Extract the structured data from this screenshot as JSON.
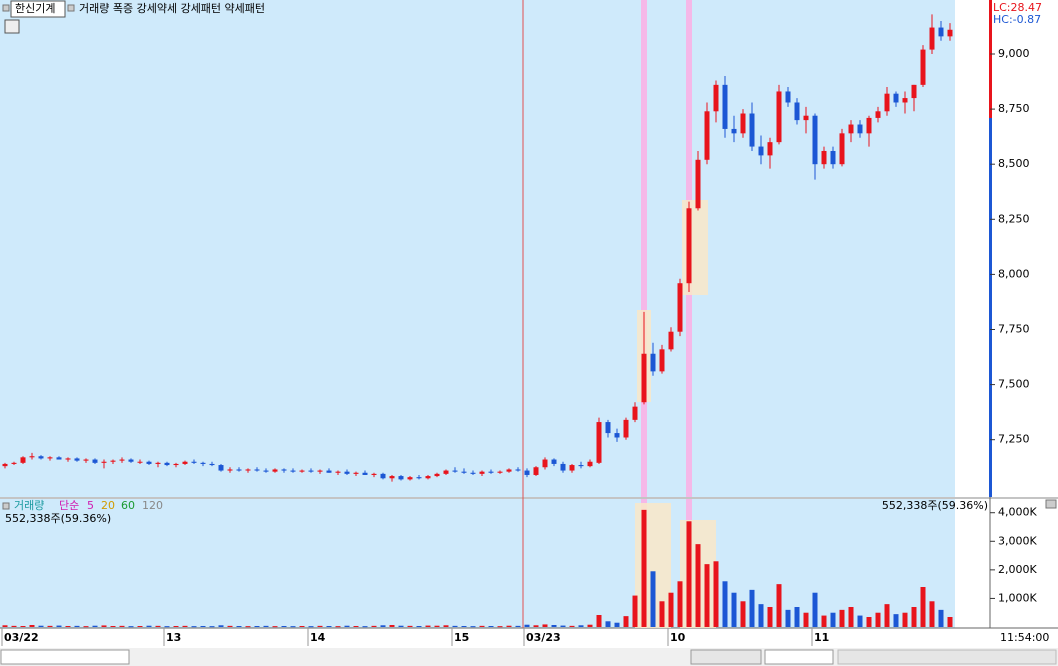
{
  "header": {
    "stock_name": "한신기계",
    "indicators": "거래량 폭증 강세약세 강세패턴 약세패턴",
    "lc": "LC:28.47",
    "hc": "HC:-0.87"
  },
  "chart_data": [
    {
      "type": "candlestick",
      "categories": [
        "03/22",
        null,
        null,
        null,
        null,
        null,
        null,
        null,
        null,
        null,
        null,
        null,
        null,
        null,
        null,
        null,
        null,
        null,
        "13",
        null,
        null,
        null,
        null,
        null,
        null,
        null,
        null,
        null,
        null,
        null,
        null,
        null,
        null,
        null,
        "14",
        null,
        null,
        null,
        null,
        null,
        null,
        null,
        null,
        null,
        null,
        null,
        null,
        null,
        null,
        null,
        "15",
        null,
        null,
        null,
        null,
        null,
        null,
        null,
        "03/23",
        null,
        null,
        null,
        null,
        null,
        null,
        null,
        null,
        null,
        null,
        null,
        null,
        null,
        null,
        null,
        "10",
        null,
        null,
        null,
        null,
        null,
        null,
        null,
        null,
        null,
        null,
        null,
        null,
        null,
        null,
        null,
        "11",
        null,
        null,
        null,
        null,
        null,
        null,
        null,
        null,
        null,
        null,
        null,
        null,
        null,
        null,
        null
      ],
      "candles": [
        [
          7130,
          7145,
          7120,
          7140
        ],
        [
          7140,
          7150,
          7135,
          7145
        ],
        [
          7145,
          7175,
          7140,
          7170
        ],
        [
          7170,
          7190,
          7160,
          7175
        ],
        [
          7175,
          7180,
          7160,
          7165
        ],
        [
          7165,
          7175,
          7155,
          7170
        ],
        [
          7170,
          7175,
          7160,
          7160
        ],
        [
          7160,
          7170,
          7150,
          7165
        ],
        [
          7165,
          7170,
          7150,
          7155
        ],
        [
          7155,
          7165,
          7145,
          7160
        ],
        [
          7160,
          7165,
          7140,
          7145
        ],
        [
          7145,
          7160,
          7120,
          7150
        ],
        [
          7150,
          7160,
          7140,
          7155
        ],
        [
          7155,
          7170,
          7145,
          7160
        ],
        [
          7160,
          7165,
          7145,
          7150
        ],
        [
          7150,
          7160,
          7140,
          7150
        ],
        [
          7150,
          7155,
          7135,
          7140
        ],
        [
          7140,
          7150,
          7125,
          7145
        ],
        [
          7145,
          7150,
          7130,
          7135
        ],
        [
          7135,
          7145,
          7125,
          7140
        ],
        [
          7140,
          7155,
          7135,
          7150
        ],
        [
          7150,
          7160,
          7140,
          7145
        ],
        [
          7145,
          7150,
          7130,
          7140
        ],
        [
          7140,
          7150,
          7130,
          7135
        ],
        [
          7135,
          7140,
          7105,
          7110
        ],
        [
          7110,
          7125,
          7100,
          7115
        ],
        [
          7115,
          7125,
          7105,
          7110
        ],
        [
          7110,
          7120,
          7100,
          7115
        ],
        [
          7115,
          7125,
          7105,
          7110
        ],
        [
          7110,
          7120,
          7100,
          7105
        ],
        [
          7105,
          7120,
          7100,
          7115
        ],
        [
          7115,
          7120,
          7100,
          7110
        ],
        [
          7110,
          7120,
          7100,
          7105
        ],
        [
          7105,
          7115,
          7100,
          7110
        ],
        [
          7110,
          7120,
          7100,
          7105
        ],
        [
          7105,
          7115,
          7095,
          7110
        ],
        [
          7110,
          7120,
          7100,
          7100
        ],
        [
          7100,
          7110,
          7090,
          7105
        ],
        [
          7105,
          7115,
          7090,
          7095
        ],
        [
          7095,
          7105,
          7085,
          7100
        ],
        [
          7100,
          7110,
          7090,
          7090
        ],
        [
          7090,
          7100,
          7080,
          7095
        ],
        [
          7095,
          7100,
          7070,
          7075
        ],
        [
          7075,
          7090,
          7060,
          7085
        ],
        [
          7085,
          7090,
          7065,
          7070
        ],
        [
          7070,
          7085,
          7065,
          7080
        ],
        [
          7080,
          7090,
          7070,
          7075
        ],
        [
          7075,
          7090,
          7070,
          7085
        ],
        [
          7085,
          7100,
          7080,
          7095
        ],
        [
          7095,
          7115,
          7090,
          7110
        ],
        [
          7110,
          7125,
          7100,
          7105
        ],
        [
          7105,
          7120,
          7095,
          7100
        ],
        [
          7100,
          7110,
          7090,
          7095
        ],
        [
          7095,
          7110,
          7085,
          7105
        ],
        [
          7105,
          7115,
          7095,
          7100
        ],
        [
          7100,
          7110,
          7095,
          7105
        ],
        [
          7105,
          7120,
          7100,
          7115
        ],
        [
          7115,
          7125,
          7105,
          7110
        ],
        [
          7110,
          7120,
          7080,
          7090
        ],
        [
          7090,
          7130,
          7085,
          7125
        ],
        [
          7125,
          7170,
          7115,
          7160
        ],
        [
          7160,
          7165,
          7130,
          7140
        ],
        [
          7140,
          7150,
          7100,
          7110
        ],
        [
          7110,
          7140,
          7100,
          7135
        ],
        [
          7135,
          7150,
          7120,
          7130
        ],
        [
          7130,
          7160,
          7125,
          7150
        ],
        [
          7145,
          7350,
          7140,
          7330
        ],
        [
          7330,
          7340,
          7260,
          7280
        ],
        [
          7280,
          7300,
          7240,
          7260
        ],
        [
          7260,
          7350,
          7250,
          7340
        ],
        [
          7340,
          7420,
          7330,
          7400
        ],
        [
          7420,
          7830,
          7410,
          7640
        ],
        [
          7640,
          7690,
          7540,
          7560
        ],
        [
          7560,
          7680,
          7550,
          7660
        ],
        [
          7660,
          7760,
          7650,
          7740
        ],
        [
          7740,
          7980,
          7720,
          7960
        ],
        [
          7960,
          8330,
          7920,
          8300
        ],
        [
          8300,
          8560,
          8290,
          8520
        ],
        [
          8520,
          8780,
          8500,
          8740
        ],
        [
          8740,
          8880,
          8690,
          8860
        ],
        [
          8860,
          8900,
          8620,
          8660
        ],
        [
          8660,
          8720,
          8600,
          8640
        ],
        [
          8640,
          8750,
          8620,
          8730
        ],
        [
          8730,
          8780,
          8560,
          8580
        ],
        [
          8580,
          8630,
          8500,
          8540
        ],
        [
          8540,
          8620,
          8480,
          8600
        ],
        [
          8600,
          8860,
          8590,
          8830
        ],
        [
          8830,
          8850,
          8760,
          8780
        ],
        [
          8780,
          8800,
          8680,
          8700
        ],
        [
          8700,
          8760,
          8640,
          8720
        ],
        [
          8720,
          8730,
          8430,
          8500
        ],
        [
          8500,
          8580,
          8480,
          8560
        ],
        [
          8560,
          8580,
          8480,
          8500
        ],
        [
          8500,
          8660,
          8490,
          8640
        ],
        [
          8640,
          8700,
          8600,
          8680
        ],
        [
          8680,
          8700,
          8620,
          8640
        ],
        [
          8640,
          8720,
          8580,
          8710
        ],
        [
          8710,
          8760,
          8690,
          8740
        ],
        [
          8740,
          8850,
          8720,
          8820
        ],
        [
          8820,
          8830,
          8760,
          8780
        ],
        [
          8780,
          8830,
          8730,
          8800
        ],
        [
          8800,
          8860,
          8740,
          8860
        ],
        [
          8860,
          9040,
          8850,
          9020
        ],
        [
          9020,
          9180,
          9000,
          9120
        ],
        [
          9120,
          9150,
          9060,
          9080
        ],
        [
          9080,
          9140,
          9060,
          9110
        ]
      ],
      "up_color": "#e8141c",
      "down_color": "#1c57d4",
      "ylim": [
        6990,
        9245
      ],
      "yticks": [
        {
          "value": 7250,
          "label": "7,250"
        },
        {
          "value": 7500,
          "label": "7,500"
        },
        {
          "value": 7750,
          "label": "7,750"
        },
        {
          "value": 8000,
          "label": "8,000"
        },
        {
          "value": 8250,
          "label": "8,250"
        },
        {
          "value": 8500,
          "label": "8,500"
        },
        {
          "value": 8750,
          "label": "8,750"
        },
        {
          "value": 9000,
          "label": "9,000"
        }
      ],
      "cursor_time": "11:54:00"
    },
    {
      "type": "volume",
      "legend": [
        "거래량",
        "단순",
        "5",
        "20",
        "60",
        "120"
      ],
      "volume_text": "552,338주(59.36%)",
      "values": [
        60,
        40,
        35,
        70,
        45,
        40,
        50,
        35,
        40,
        30,
        45,
        55,
        35,
        40,
        30,
        35,
        45,
        40,
        30,
        35,
        40,
        30,
        35,
        30,
        60,
        40,
        35,
        30,
        35,
        40,
        30,
        35,
        30,
        35,
        30,
        40,
        35,
        30,
        45,
        35,
        30,
        40,
        60,
        70,
        45,
        40,
        35,
        50,
        45,
        60,
        40,
        35,
        30,
        40,
        35,
        30,
        45,
        40,
        80,
        60,
        90,
        70,
        50,
        40,
        60,
        80,
        420,
        200,
        150,
        380,
        1100,
        4100,
        1950,
        900,
        1200,
        1600,
        3700,
        2900,
        2200,
        2300,
        1600,
        1200,
        900,
        1300,
        800,
        700,
        1500,
        600,
        700,
        500,
        1200,
        400,
        500,
        600,
        700,
        400,
        350,
        500,
        800,
        450,
        500,
        700,
        1400,
        900,
        600,
        350
      ],
      "ylim": [
        0,
        4480
      ],
      "yticks": [
        {
          "value": 1000,
          "label": "1,000K"
        },
        {
          "value": 2000,
          "label": "2,000K"
        },
        {
          "value": 3000,
          "label": "3,000K"
        },
        {
          "value": 4000,
          "label": "4,000K"
        }
      ]
    }
  ]
}
